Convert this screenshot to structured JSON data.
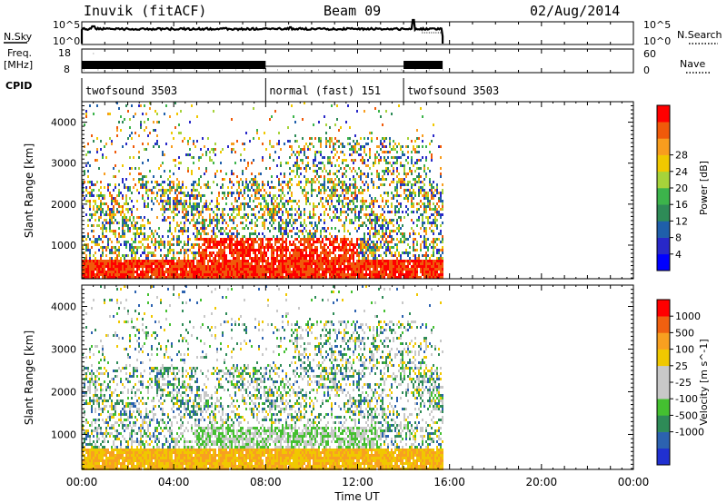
{
  "header": {
    "station": "Inuvik (fitACF)",
    "beam": "Beam 09",
    "date": "02/Aug/2014"
  },
  "strip_panels": {
    "noise": {
      "left_label": "N.Sky",
      "right_label": "N.Search",
      "tick_top": "10^5",
      "tick_bottom": "10^0",
      "right_tick_top": "10^5",
      "right_tick_bottom": "10^0"
    },
    "freq": {
      "left_label_1": "Freq.",
      "left_label_2": "[MHz]",
      "right_label": "Nave",
      "tick_top": "18",
      "tick_bottom": "8",
      "right_tick_top": "60",
      "right_tick_bottom": "0"
    },
    "cpid": {
      "label": "CPID",
      "segments": [
        {
          "text": "twofsound 3503",
          "start_hour": 0
        },
        {
          "text": "normal (fast) 151",
          "start_hour": 8
        },
        {
          "text": "twofsound 3503",
          "start_hour": 14
        }
      ]
    }
  },
  "chart_data": [
    {
      "type": "heatmap",
      "name": "power",
      "ylabel": "Slant Range [km]",
      "yticks": [
        "1000",
        "2000",
        "3000",
        "4000"
      ],
      "ylim": [
        180,
        4500
      ],
      "xlim": [
        0,
        24
      ],
      "data_extent_hours": [
        0,
        15.7
      ],
      "colorbar": {
        "label": "Power [dB]",
        "ticks": [
          "4",
          "8",
          "12",
          "16",
          "20",
          "24",
          "28"
        ],
        "colors": [
          "#0000ff",
          "#2828c8",
          "#1f5faa",
          "#2e8b57",
          "#3cb44b",
          "#a6d33a",
          "#f0c800",
          "#f89d1e",
          "#f05a0a",
          "#ff0000"
        ]
      }
    },
    {
      "type": "heatmap",
      "name": "velocity",
      "ylabel": "Slant Range [km]",
      "yticks": [
        "1000",
        "2000",
        "3000",
        "4000"
      ],
      "ylim": [
        180,
        4500
      ],
      "xlim": [
        0,
        24
      ],
      "data_extent_hours": [
        0,
        15.7
      ],
      "colorbar": {
        "label": "Velocity [m s^-1]",
        "ticks": [
          "1000",
          "500",
          "100",
          "25",
          "-25",
          "-100",
          "-500",
          "-1000"
        ],
        "colors": [
          "#2030d0",
          "#2c62b0",
          "#2e8b57",
          "#44c030",
          "#c8c8c8",
          "#c8c8c8",
          "#f0c800",
          "#f8a020",
          "#f06010",
          "#ff0000"
        ]
      }
    }
  ],
  "time_axis": {
    "label": "Time UT",
    "ticks": [
      "00:00",
      "04:00",
      "08:00",
      "12:00",
      "16:00",
      "20:00",
      "00:00"
    ]
  }
}
